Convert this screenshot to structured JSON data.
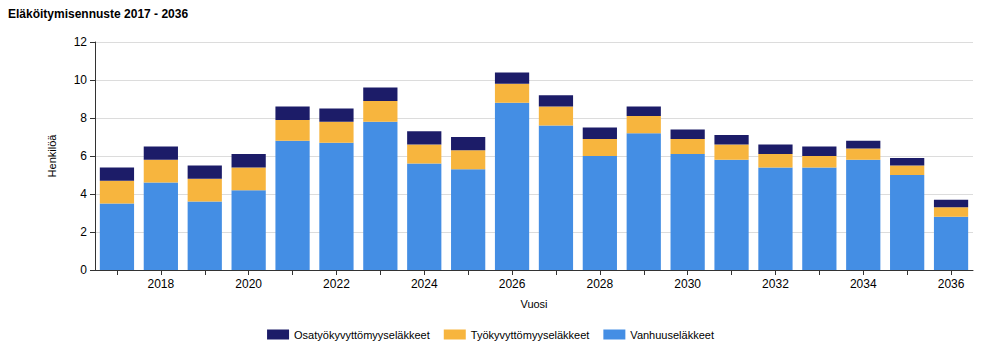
{
  "chart_data": {
    "type": "bar",
    "title": "Eläköitymisennuste 2017 - 2036",
    "x_label": "Vuosi",
    "y_label": "Henkilöä",
    "categories": [
      null,
      "2018",
      null,
      "2020",
      null,
      "2022",
      null,
      "2024",
      null,
      "2026",
      null,
      "2028",
      null,
      "2030",
      null,
      "2032",
      null,
      "2034",
      null,
      "2036"
    ],
    "series": [
      {
        "name": "Vanhuuseläkkeet",
        "color": "#448ee4",
        "values": [
          3.5,
          4.6,
          3.6,
          4.2,
          6.8,
          6.7,
          7.8,
          5.6,
          5.3,
          8.8,
          7.6,
          6.0,
          7.2,
          6.1,
          5.8,
          5.4,
          5.4,
          5.8,
          5.0,
          2.8
        ]
      },
      {
        "name": "Työkyvyttömyyseläkkeet",
        "color": "#f7b53e",
        "values": [
          1.2,
          1.2,
          1.2,
          1.2,
          1.1,
          1.1,
          1.1,
          1.0,
          1.0,
          1.0,
          1.0,
          0.9,
          0.9,
          0.8,
          0.8,
          0.7,
          0.6,
          0.6,
          0.5,
          0.5
        ]
      },
      {
        "name": "Osatyökyvyttömyyseläkkeet",
        "color": "#1c1c68",
        "values": [
          0.7,
          0.7,
          0.7,
          0.7,
          0.7,
          0.7,
          0.7,
          0.7,
          0.7,
          0.6,
          0.6,
          0.6,
          0.5,
          0.5,
          0.5,
          0.5,
          0.5,
          0.4,
          0.4,
          0.4
        ]
      }
    ],
    "ylim": [
      0,
      12
    ],
    "yticks": [
      0,
      2,
      4,
      6,
      8,
      10,
      12
    ],
    "stacked": true,
    "grid": true,
    "legend": "bottom"
  }
}
